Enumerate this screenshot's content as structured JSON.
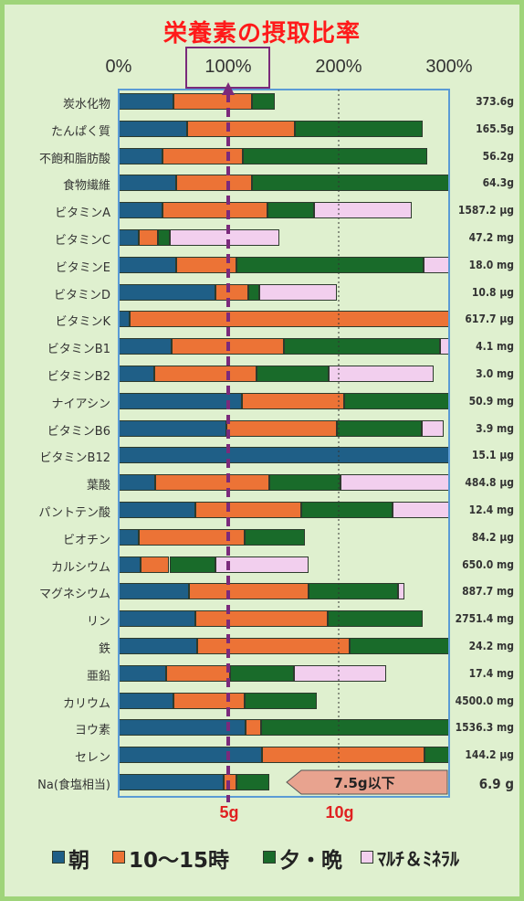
{
  "colors": {
    "asa": "#1f5f87",
    "hiru": "#ec7336",
    "yu": "#196b2a",
    "multi": "#f2cfee",
    "title": "#ff1a1a",
    "highlight": "#7a2a7a",
    "plot_border": "#5b9bd5"
  },
  "chart_data": {
    "type": "bar",
    "orientation": "horizontal",
    "stacked": true,
    "title": "栄養素の摂取比率",
    "x_ticks": [
      "0%",
      "100%",
      "200%",
      "300%"
    ],
    "xlim": [
      0,
      300
    ],
    "reference_line": 100,
    "dotted_line": 200,
    "grid": false,
    "series": [
      {
        "name": "朝",
        "color": "#1f5f87",
        "values": [
          50,
          62,
          40,
          52,
          40,
          18,
          52,
          88,
          10,
          48,
          32,
          112,
          98,
          300,
          33,
          70,
          18,
          20,
          64,
          70,
          71,
          43,
          50,
          115,
          130,
          95
        ]
      },
      {
        "name": "10～15時",
        "color": "#ec7336",
        "values": [
          71,
          98,
          73,
          69,
          95,
          18,
          55,
          30,
          290,
          102,
          93,
          93,
          100,
          0,
          104,
          96,
          96,
          26,
          108,
          120,
          139,
          58,
          64,
          14,
          148,
          12
        ]
      },
      {
        "name": "夕・晩",
        "color": "#196b2a",
        "values": [
          21,
          116,
          167,
          180,
          42,
          10,
          170,
          10,
          0,
          142,
          66,
          95,
          77,
          0,
          64,
          83,
          55,
          42,
          82,
          86,
          91,
          58,
          66,
          171,
          22,
          30
        ]
      },
      {
        "name": "ﾏﾙﾁ＆ﾐﾈﾗﾙ",
        "color": "#f2cfee",
        "values": [
          0,
          0,
          0,
          0,
          89,
          100,
          23,
          70,
          0,
          8,
          95,
          0,
          20,
          0,
          99,
          51,
          0,
          84,
          5,
          0,
          0,
          84,
          0,
          0,
          0,
          0
        ]
      }
    ],
    "rows": [
      {
        "label": "炭水化物",
        "value": "373.6g"
      },
      {
        "label": "たんぱく質",
        "value": "165.5g"
      },
      {
        "label": "不飽和脂肪酸",
        "value": "56.2g"
      },
      {
        "label": "食物繊維",
        "value": "64.3g"
      },
      {
        "label": "ビタミンA",
        "value": "1587.2 μg"
      },
      {
        "label": "ビタミンC",
        "value": "47.2 mg"
      },
      {
        "label": "ビタミンE",
        "value": "18.0 mg"
      },
      {
        "label": "ビタミンD",
        "value": "10.8 μg"
      },
      {
        "label": "ビタミンK",
        "value": "617.7 μg"
      },
      {
        "label": "ビタミンB1",
        "value": "4.1 mg"
      },
      {
        "label": "ビタミンB2",
        "value": "3.0 mg"
      },
      {
        "label": "ナイアシン",
        "value": "50.9 mg"
      },
      {
        "label": "ビタミンB6",
        "value": "3.9 mg"
      },
      {
        "label": "ビタミンB12",
        "value": "15.1 μg"
      },
      {
        "label": "葉酸",
        "value": "484.8 μg"
      },
      {
        "label": "パントテン酸",
        "value": "12.4 mg"
      },
      {
        "label": "ビオチン",
        "value": "84.2 μg"
      },
      {
        "label": "カルシウム",
        "value": "650.0 mg"
      },
      {
        "label": "マグネシウム",
        "value": "887.7 mg"
      },
      {
        "label": "リン",
        "value": "2751.4 mg"
      },
      {
        "label": "鉄",
        "value": "24.2 mg"
      },
      {
        "label": "亜鉛",
        "value": "17.4 mg"
      },
      {
        "label": "カリウム",
        "value": "4500.0 mg"
      },
      {
        "label": "ヨウ素",
        "value": "1536.3 mg"
      },
      {
        "label": "セレン",
        "value": "144.2 μg"
      },
      {
        "label": "Na(食塩相当)",
        "value": "6.9 g"
      }
    ],
    "sodium_note": "7.5g以下",
    "bottom_labels": [
      "5g",
      "10g"
    ]
  }
}
